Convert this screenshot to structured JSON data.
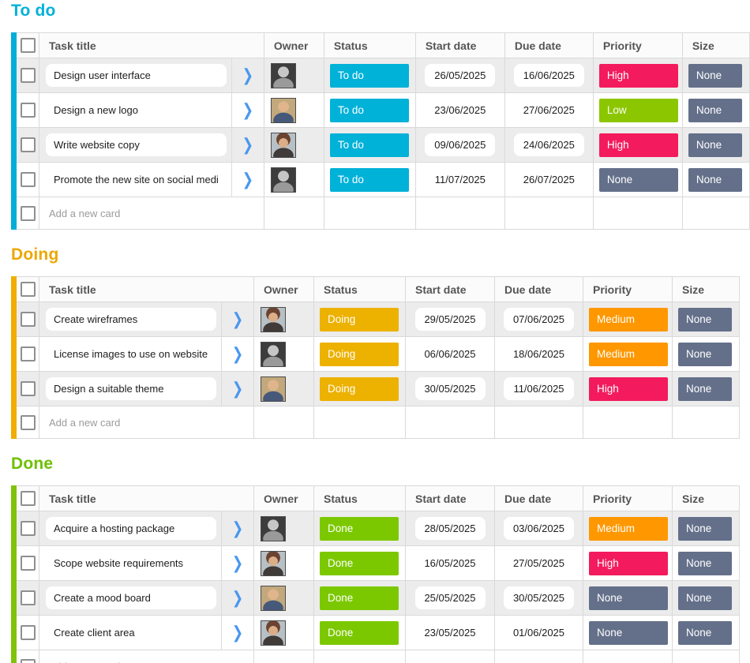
{
  "columns": [
    "Task title",
    "Owner",
    "Status",
    "Start date",
    "Due date",
    "Priority",
    "Size"
  ],
  "add_card_label": "Add a new card",
  "icons": {
    "chevron_right_icon": "❯"
  },
  "palette": {
    "To do": "#00b1d8",
    "Doing": "#edb100",
    "Done": "#7cc800",
    "High": "#f31b5d",
    "Medium": "#fe9700",
    "Low": "#8cc600",
    "None": "#64708a"
  },
  "sections": [
    {
      "id": "todo",
      "title": "To do",
      "accent": "#00aed8",
      "title_color": "#00b1d8",
      "rows": [
        {
          "title": "Design user interface",
          "avatar": "man-gray",
          "status": "To do",
          "start": "26/05/2025",
          "due": "16/06/2025",
          "priority": "High",
          "size": "None"
        },
        {
          "title": "Design a new logo",
          "avatar": "man-color",
          "status": "To do",
          "start": "23/06/2025",
          "due": "27/06/2025",
          "priority": "Low",
          "size": "None"
        },
        {
          "title": "Write website copy",
          "avatar": "woman-color",
          "status": "To do",
          "start": "09/06/2025",
          "due": "24/06/2025",
          "priority": "High",
          "size": "None"
        },
        {
          "title": "Promote the new site on social medi",
          "avatar": "man-gray",
          "status": "To do",
          "start": "11/07/2025",
          "due": "26/07/2025",
          "priority": "None",
          "size": "None"
        }
      ]
    },
    {
      "id": "doing",
      "title": "Doing",
      "accent": "#f0ad00",
      "title_color": "#eda701",
      "rows": [
        {
          "title": "Create wireframes",
          "avatar": "woman-color",
          "status": "Doing",
          "start": "29/05/2025",
          "due": "07/06/2025",
          "priority": "Medium",
          "size": "None"
        },
        {
          "title": "License images to use on website",
          "avatar": "man-gray",
          "status": "Doing",
          "start": "06/06/2025",
          "due": "18/06/2025",
          "priority": "Medium",
          "size": "None"
        },
        {
          "title": "Design a suitable theme",
          "avatar": "man-color",
          "status": "Doing",
          "start": "30/05/2025",
          "due": "11/06/2025",
          "priority": "High",
          "size": "None"
        }
      ]
    },
    {
      "id": "done",
      "title": "Done",
      "accent": "#7fc30a",
      "title_color": "#6ec000",
      "rows": [
        {
          "title": "Acquire a hosting package",
          "avatar": "man-gray",
          "status": "Done",
          "start": "28/05/2025",
          "due": "03/06/2025",
          "priority": "Medium",
          "size": "None"
        },
        {
          "title": "Scope website requirements",
          "avatar": "woman-color",
          "status": "Done",
          "start": "16/05/2025",
          "due": "27/05/2025",
          "priority": "High",
          "size": "None"
        },
        {
          "title": "Create a mood board",
          "avatar": "man-color",
          "status": "Done",
          "start": "25/05/2025",
          "due": "30/05/2025",
          "priority": "None",
          "size": "None"
        },
        {
          "title": "Create client area",
          "avatar": "woman-color",
          "status": "Done",
          "start": "23/05/2025",
          "due": "01/06/2025",
          "priority": "None",
          "size": "None"
        }
      ]
    }
  ]
}
